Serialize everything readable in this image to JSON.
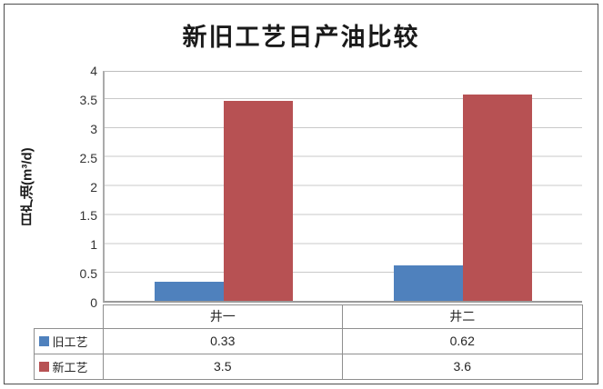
{
  "chart_data": {
    "type": "bar",
    "title": "新旧工艺日产油比较",
    "xlabel": "",
    "ylabel": "日产油(m³/d)",
    "categories": [
      "井一",
      "井二"
    ],
    "series": [
      {
        "name": "旧工艺",
        "color": "#4F81BD",
        "values": [
          0.33,
          0.62
        ]
      },
      {
        "name": "新工艺",
        "color": "#B75153",
        "values": [
          3.5,
          3.6
        ]
      }
    ],
    "ylim": [
      0,
      4
    ],
    "ytick_step": 0.5,
    "yticks": [
      "4",
      "3.5",
      "3",
      "2.5",
      "2",
      "1.5",
      "1",
      "0.5",
      "0"
    ],
    "grid": true,
    "legend_position": "data-table-left",
    "data_table": {
      "values_text": [
        [
          "0.33",
          "0.62"
        ],
        [
          "3.5",
          "3.6"
        ]
      ]
    }
  }
}
